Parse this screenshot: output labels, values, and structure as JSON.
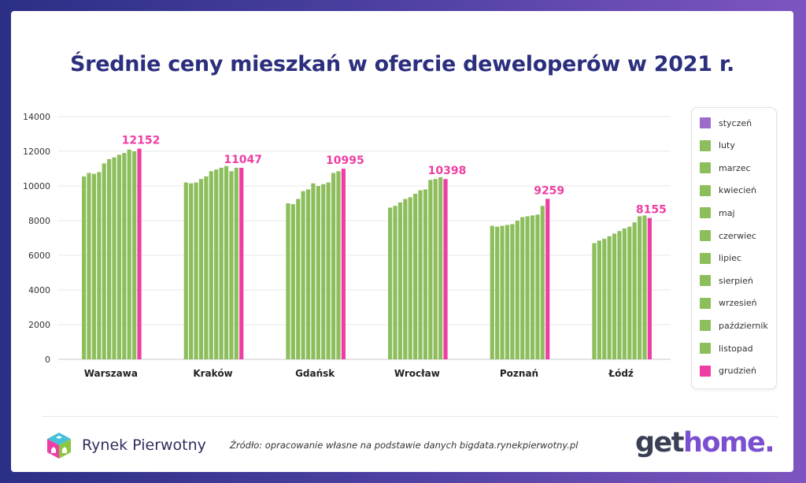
{
  "title": "Średnie ceny mieszkań w ofercie deweloperów w 2021 r.",
  "colors": {
    "regular_month": "#8dbe5c",
    "january": "#9b6dc8",
    "december": "#ee3ea4",
    "value_label": "#ee3ea4"
  },
  "chart_data": {
    "type": "bar",
    "title": "Średnie ceny mieszkań w ofercie deweloperów w 2021 r.",
    "xlabel": "",
    "ylabel": "",
    "ylim": [
      0,
      14000
    ],
    "yticks": [
      0,
      2000,
      4000,
      6000,
      8000,
      10000,
      12000,
      14000
    ],
    "grid": true,
    "legend_position": "right",
    "categories": [
      "Warszawa",
      "Kraków",
      "Gdańsk",
      "Wrocław",
      "Poznań",
      "Łódź"
    ],
    "series": [
      {
        "name": "styczeń",
        "values": [
          10550,
          10200,
          9000,
          8750,
          7700,
          6700
        ]
      },
      {
        "name": "luty",
        "values": [
          10750,
          10150,
          8950,
          8850,
          7650,
          6850
        ]
      },
      {
        "name": "marzec",
        "values": [
          10700,
          10200,
          9250,
          9050,
          7700,
          6950
        ]
      },
      {
        "name": "kwiecień",
        "values": [
          10800,
          10400,
          9700,
          9250,
          7750,
          7100
        ]
      },
      {
        "name": "maj",
        "values": [
          11300,
          10550,
          9800,
          9350,
          7800,
          7250
        ]
      },
      {
        "name": "czerwiec",
        "values": [
          11550,
          10850,
          10150,
          9550,
          8000,
          7400
        ]
      },
      {
        "name": "lipiec",
        "values": [
          11650,
          10950,
          10000,
          9750,
          8200,
          7550
        ]
      },
      {
        "name": "sierpień",
        "values": [
          11800,
          11050,
          10100,
          9800,
          8250,
          7650
        ]
      },
      {
        "name": "wrzesień",
        "values": [
          11900,
          11150,
          10200,
          10350,
          8300,
          7900
        ]
      },
      {
        "name": "październik",
        "values": [
          12100,
          10850,
          10750,
          10400,
          8350,
          8250
        ]
      },
      {
        "name": "listopad",
        "values": [
          12000,
          11050,
          10850,
          10500,
          8850,
          8300
        ]
      },
      {
        "name": "grudzień",
        "values": [
          12152,
          11047,
          10995,
          10398,
          9259,
          8155
        ]
      }
    ],
    "data_labels": [
      "12152",
      "11047",
      "10995",
      "10398",
      "9259",
      "8155"
    ]
  },
  "footer": {
    "brand_name": "Rynek Pierwotny",
    "source": "Źródło: opracowanie własne na podstawie danych bigdata.rynekpierwotny.pl",
    "logo_get": "get",
    "logo_home": "home."
  },
  "icons": {
    "brand_logo": "cube-house-icon"
  }
}
